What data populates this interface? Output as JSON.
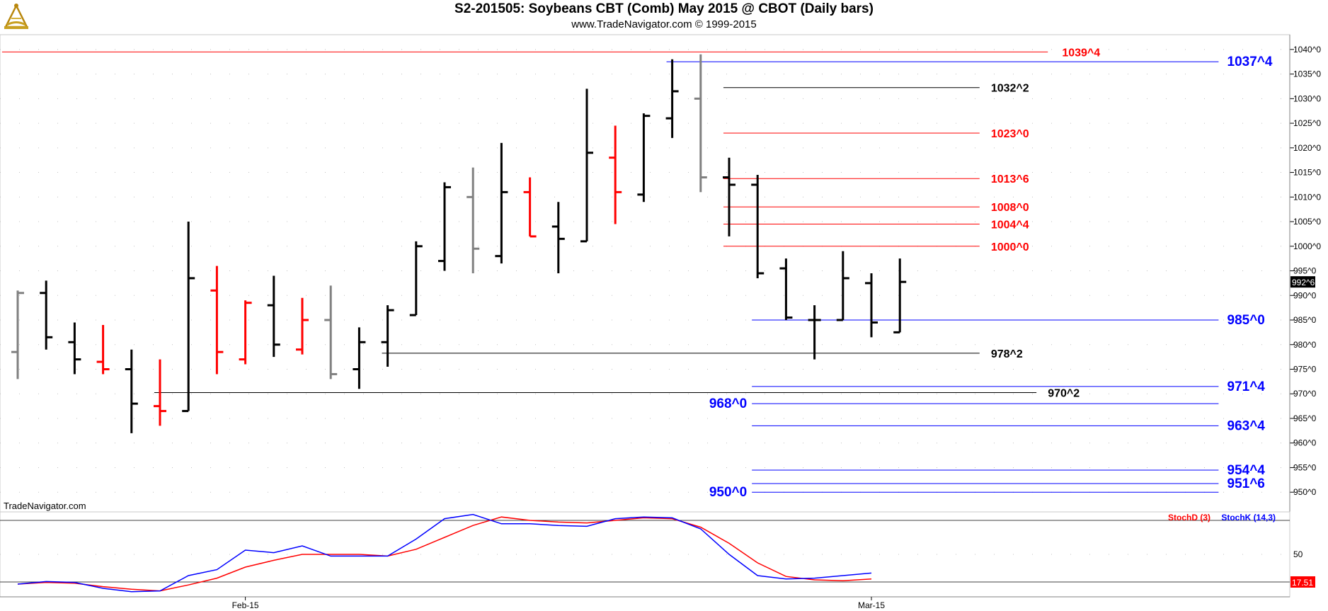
{
  "header": {
    "title": "S2-201505:  Soybeans CBT (Comb) May 2015 @ CBOT  (Daily bars)",
    "subtitle": "www.TradeNavigator.com © 1999-2015",
    "logo_icon": "sextant-logo-icon"
  },
  "watermark": "TradeNavigator.com",
  "colors": {
    "up": "#000000",
    "down": "#ff0000",
    "neutral": "#808080",
    "blue": "#0000ff",
    "red": "#ff0000",
    "black": "#000000"
  },
  "chart_data": [
    {
      "type": "ohlc",
      "title": "S2-201505:  Soybeans CBT (Comb) May 2015 @ CBOT  (Daily bars)",
      "ylim": [
        946,
        1043
      ],
      "y_ticks": [
        "1040^0",
        "1035^0",
        "1030^0",
        "1025^0",
        "1020^0",
        "1015^0",
        "1010^0",
        "1005^0",
        "1000^0",
        "995^0",
        "990^0",
        "985^0",
        "980^0",
        "975^0",
        "970^0",
        "965^0",
        "960^0",
        "955^0",
        "950^0"
      ],
      "x_ticks": [
        {
          "label": "Feb-15",
          "index": 8
        },
        {
          "label": "Mar-15",
          "index": 30
        }
      ],
      "last_price": "992^6",
      "last_value": 992.75,
      "bars": [
        {
          "o": 978.5,
          "h": 991,
          "l": 973,
          "c": 990.5,
          "color": "neutral"
        },
        {
          "o": 990.5,
          "h": 993,
          "l": 979,
          "c": 981.5,
          "color": "up"
        },
        {
          "o": 980.5,
          "h": 984.5,
          "l": 974,
          "c": 977,
          "color": "up"
        },
        {
          "o": 976.5,
          "h": 984,
          "l": 974,
          "c": 975,
          "color": "down"
        },
        {
          "o": 975,
          "h": 979,
          "l": 962,
          "c": 968,
          "color": "up"
        },
        {
          "o": 967.5,
          "h": 977,
          "l": 963.5,
          "c": 966.5,
          "color": "down"
        },
        {
          "o": 966.5,
          "h": 1005,
          "l": 966.5,
          "c": 993.5,
          "color": "up"
        },
        {
          "o": 991,
          "h": 996,
          "l": 974,
          "c": 978.5,
          "color": "down"
        },
        {
          "o": 977,
          "h": 989,
          "l": 976,
          "c": 988.5,
          "color": "down"
        },
        {
          "o": 988,
          "h": 994,
          "l": 977.5,
          "c": 980,
          "color": "up"
        },
        {
          "o": 979,
          "h": 989.5,
          "l": 978,
          "c": 985,
          "color": "down"
        },
        {
          "o": 985,
          "h": 992,
          "l": 973,
          "c": 974,
          "color": "neutral"
        },
        {
          "o": 975,
          "h": 983.5,
          "l": 971,
          "c": 980.5,
          "color": "up"
        },
        {
          "o": 980.5,
          "h": 988,
          "l": 975.5,
          "c": 987,
          "color": "up"
        },
        {
          "o": 986,
          "h": 1001,
          "l": 986,
          "c": 1000,
          "color": "up"
        },
        {
          "o": 997,
          "h": 1013,
          "l": 995,
          "c": 1012,
          "color": "up"
        },
        {
          "o": 1010,
          "h": 1016,
          "l": 994.5,
          "c": 999.5,
          "color": "neutral"
        },
        {
          "o": 998,
          "h": 1021,
          "l": 996.5,
          "c": 1011,
          "color": "up"
        },
        {
          "o": 1011,
          "h": 1014,
          "l": 1002,
          "c": 1002,
          "color": "down"
        },
        {
          "o": 1004,
          "h": 1009,
          "l": 994.5,
          "c": 1001.5,
          "color": "up"
        },
        {
          "o": 1001,
          "h": 1032,
          "l": 1001,
          "c": 1019,
          "color": "up"
        },
        {
          "o": 1018,
          "h": 1024.5,
          "l": 1004.5,
          "c": 1011,
          "color": "down"
        },
        {
          "o": 1010.5,
          "h": 1027,
          "l": 1009,
          "c": 1026.5,
          "color": "up"
        },
        {
          "o": 1026,
          "h": 1038,
          "l": 1022,
          "c": 1031.5,
          "color": "up"
        },
        {
          "o": 1030,
          "h": 1039,
          "l": 1011,
          "c": 1014,
          "color": "neutral"
        },
        {
          "o": 1014,
          "h": 1018,
          "l": 1002,
          "c": 1012.5,
          "color": "up"
        },
        {
          "o": 1012.5,
          "h": 1014.5,
          "l": 993.5,
          "c": 994.5,
          "color": "up"
        },
        {
          "o": 995.5,
          "h": 997.5,
          "l": 985,
          "c": 985.5,
          "color": "up"
        },
        {
          "o": 985,
          "h": 988,
          "l": 977,
          "c": 985,
          "color": "up"
        },
        {
          "o": 985,
          "h": 999,
          "l": 985,
          "c": 993.5,
          "color": "up"
        },
        {
          "o": 992.5,
          "h": 994.5,
          "l": 981.5,
          "c": 984.5,
          "color": "up"
        },
        {
          "o": 982.5,
          "h": 997.5,
          "l": 982.5,
          "c": 992.75,
          "color": "up"
        }
      ],
      "level_lines": [
        {
          "value": 1039.5,
          "label": "1039^4",
          "color": "red",
          "from": -0.55,
          "to": 36.2,
          "label_at": 36.7
        },
        {
          "value": 1037.5,
          "label": "1037^4",
          "color": "blue",
          "from": 22.8,
          "to": 42.2,
          "label_at": 42.5
        },
        {
          "value": 1032.25,
          "label": "1032^2",
          "color": "black",
          "from": 24.8,
          "to": 33.8,
          "label_at": 34.2
        },
        {
          "value": 1023,
          "label": "1023^0",
          "color": "red",
          "from": 24.8,
          "to": 33.8,
          "label_at": 34.2
        },
        {
          "value": 1013.75,
          "label": "1013^6",
          "color": "red",
          "from": 24.8,
          "to": 33.8,
          "label_at": 34.2
        },
        {
          "value": 1008,
          "label": "1008^0",
          "color": "red",
          "from": 24.8,
          "to": 33.8,
          "label_at": 34.2
        },
        {
          "value": 1004.5,
          "label": "1004^4",
          "color": "red",
          "from": 24.8,
          "to": 33.8,
          "label_at": 34.2
        },
        {
          "value": 1000,
          "label": "1000^0",
          "color": "red",
          "from": 24.8,
          "to": 33.8,
          "label_at": 34.2
        },
        {
          "value": 985,
          "label": "985^0",
          "color": "blue",
          "from": 25.8,
          "to": 42.2,
          "label_at": 42.5
        },
        {
          "value": 978.25,
          "label": "978^2",
          "color": "black",
          "from": 12.8,
          "to": 33.8,
          "label_at": 34.2
        },
        {
          "value": 971.5,
          "label": "971^4",
          "color": "blue",
          "from": 25.8,
          "to": 42.2,
          "label_at": 42.5
        },
        {
          "value": 970.25,
          "label": "970^2",
          "color": "black",
          "from": 4.8,
          "to": 35.8,
          "label_at": 36.2
        },
        {
          "value": 968,
          "label": "968^0",
          "color": "blue",
          "from": 25.8,
          "to": 42.2,
          "label_at": 24.3
        },
        {
          "value": 963.5,
          "label": "963^4",
          "color": "blue",
          "from": 25.8,
          "to": 42.2,
          "label_at": 42.5
        },
        {
          "value": 954.5,
          "label": "954^4",
          "color": "blue",
          "from": 25.8,
          "to": 42.2,
          "label_at": 42.5
        },
        {
          "value": 951.75,
          "label": "951^6",
          "color": "blue",
          "from": 25.8,
          "to": 42.2,
          "label_at": 42.5
        },
        {
          "value": 950,
          "label": "950^0",
          "color": "blue",
          "from": 25.8,
          "to": 42.2,
          "label_at": 24.3
        }
      ]
    },
    {
      "type": "line",
      "ylim": [
        0,
        100
      ],
      "y_ticks": [
        "50"
      ],
      "h_lines": [
        90,
        17.51
      ],
      "last_value": "17.51",
      "legend": "top-right",
      "series": [
        {
          "name": "StochD (3)",
          "color": "red",
          "values": [
            15,
            17,
            16,
            12,
            9,
            7,
            14,
            22,
            35,
            43,
            50,
            50,
            50,
            48,
            56,
            70,
            84,
            94,
            90,
            88,
            87,
            90,
            93,
            92,
            82,
            63,
            40,
            24,
            20,
            19,
            21
          ]
        },
        {
          "name": "StochK (14,3)",
          "color": "blue",
          "values": [
            15,
            18,
            17,
            10,
            6,
            7,
            25,
            32,
            55,
            52,
            60,
            48,
            48,
            48,
            68,
            92,
            97,
            86,
            86,
            84,
            83,
            92,
            94,
            93,
            80,
            50,
            25,
            21,
            22,
            25,
            28
          ]
        }
      ]
    }
  ]
}
